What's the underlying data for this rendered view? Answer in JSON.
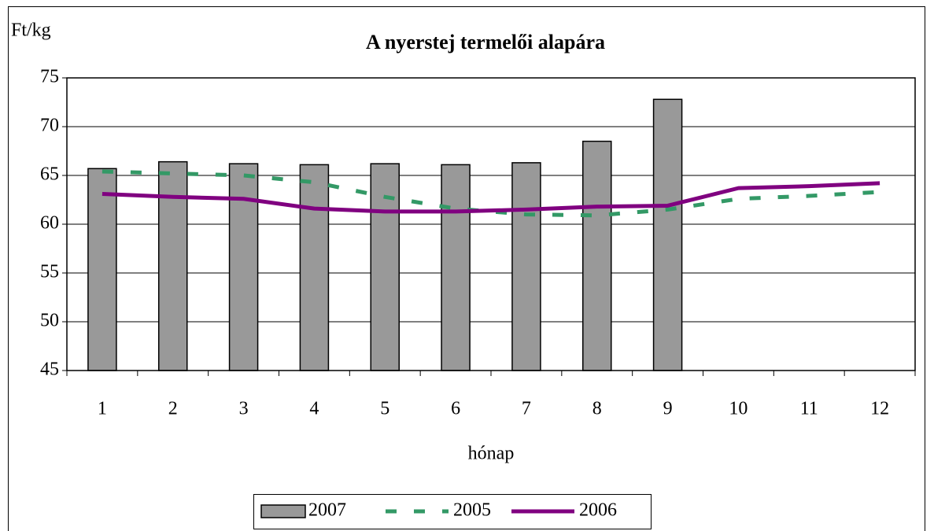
{
  "chart_data": {
    "type": "bar",
    "title": "A nyerstej termelői alapára",
    "y_label": "Ft/kg",
    "x_label": "hónap",
    "categories": [
      "1",
      "2",
      "3",
      "4",
      "5",
      "6",
      "7",
      "8",
      "9",
      "10",
      "11",
      "12"
    ],
    "series": [
      {
        "name": "2007",
        "type": "bar",
        "color": "#999999",
        "values": [
          65.7,
          66.4,
          66.2,
          66.1,
          66.2,
          66.1,
          66.3,
          68.5,
          72.8,
          null,
          null,
          null
        ]
      },
      {
        "name": "2005",
        "type": "line",
        "line_style": "dashed",
        "color": "#339966",
        "values": [
          65.4,
          65.2,
          65.0,
          64.3,
          62.8,
          61.6,
          61.0,
          60.9,
          61.5,
          62.6,
          62.9,
          63.3
        ]
      },
      {
        "name": "2006",
        "type": "line",
        "line_style": "solid",
        "color": "#800080",
        "values": [
          63.1,
          62.8,
          62.6,
          61.6,
          61.3,
          61.3,
          61.5,
          61.8,
          61.9,
          63.7,
          63.9,
          64.2
        ]
      }
    ],
    "ylim": [
      45,
      75
    ],
    "yticks": [
      45,
      50,
      55,
      60,
      65,
      70,
      75
    ],
    "grid": true,
    "legend": "bottom"
  }
}
